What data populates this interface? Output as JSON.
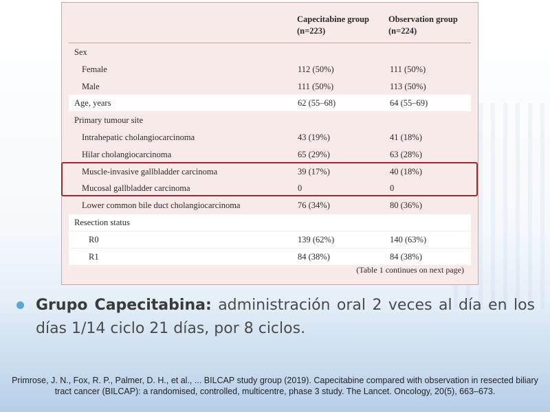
{
  "table": {
    "columns": [
      {
        "title": "Capecitabine group",
        "sub": "(n=223)"
      },
      {
        "title": "Observation group",
        "sub": "(n=224)"
      }
    ],
    "rows": [
      {
        "label": "Sex",
        "v1": "",
        "v2": "",
        "indent": false,
        "shaded": false
      },
      {
        "label": "Female",
        "v1": "112 (50%)",
        "v2": "111 (50%)",
        "indent": true,
        "shaded": false
      },
      {
        "label": "Male",
        "v1": "111 (50%)",
        "v2": "113 (50%)",
        "indent": true,
        "shaded": false
      },
      {
        "label": "Age, years",
        "v1": "62 (55–68)",
        "v2": "64 (55–69)",
        "indent": false,
        "shaded": true
      },
      {
        "label": "Primary tumour site",
        "v1": "",
        "v2": "",
        "indent": false,
        "shaded": false
      },
      {
        "label": "Intrahepatic cholangiocarcinoma",
        "v1": "43 (19%)",
        "v2": "41 (18%)",
        "indent": true,
        "shaded": false
      },
      {
        "label": "Hilar cholangiocarcinoma",
        "v1": "65 (29%)",
        "v2": "63 (28%)",
        "indent": true,
        "shaded": false
      },
      {
        "label": "Muscle-invasive gallbladder carcinoma",
        "v1": "39 (17%)",
        "v2": "40 (18%)",
        "indent": true,
        "shaded": false
      },
      {
        "label": "Mucosal gallbladder carcinoma",
        "v1": "0",
        "v2": "0",
        "indent": true,
        "shaded": false
      },
      {
        "label": "Lower common bile duct cholangiocarcinoma",
        "v1": "76 (34%)",
        "v2": "80 (36%)",
        "indent": true,
        "shaded": false
      },
      {
        "label": "Resection status",
        "v1": "",
        "v2": "",
        "indent": false,
        "shaded": true
      },
      {
        "label": "R0",
        "v1": "139 (62%)",
        "v2": "140 (63%)",
        "indent": true,
        "shaded": true
      },
      {
        "label": "R1",
        "v1": "84 (38%)",
        "v2": "84 (38%)",
        "indent": true,
        "shaded": true
      }
    ],
    "continues_note": "(Table 1 continues on next page)"
  },
  "bullet": {
    "bold": "Grupo Capecitabina:",
    "text": " administración oral 2 veces al día en los días 1/14 ciclo 21 días, por 8 ciclos."
  },
  "reference": "Primrose, J. N., Fox, R. P., Palmer, D. H., et al., ... BILCAP study group (2019). Capecitabine compared with observation in resected biliary tract cancer (BILCAP): a randomised, controlled, multicentre, phase 3 study. The Lancet. Oncology, 20(5), 663–673.",
  "colors": {
    "panel_bg": "#f9eaea",
    "highlight": "#a42626",
    "bullet": "#5aa7d6"
  }
}
